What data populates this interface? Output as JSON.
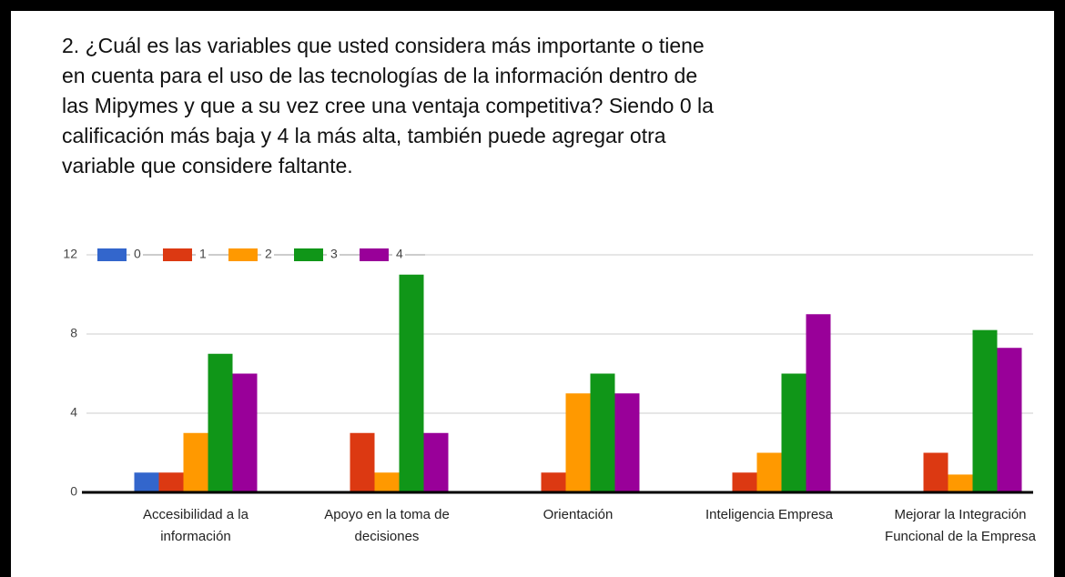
{
  "chart_data": {
    "type": "bar",
    "title": "2. ¿Cuál es las variables que usted considera más importante o tiene en cuenta para el uso de las tecnologías de la información dentro de las Mipymes y que a su vez cree una ventaja competitiva? Siendo 0 la calificación más baja y 4 la más alta, también puede agregar otra variable que considere faltante.",
    "categories": [
      "Accesibilidad a la información",
      "Apoyo en la toma de decisiones",
      "Orientación",
      "Inteligencia Empresa",
      "Mejorar la Integración Funcional de la Empresa"
    ],
    "series": [
      {
        "name": "0",
        "color": "#3366cc",
        "values": [
          1,
          0,
          0,
          0,
          0
        ]
      },
      {
        "name": "1",
        "color": "#dc3912",
        "values": [
          1,
          3,
          1,
          1,
          2
        ]
      },
      {
        "name": "2",
        "color": "#ff9900",
        "values": [
          3,
          1,
          5,
          2,
          0.9
        ]
      },
      {
        "name": "3",
        "color": "#109618",
        "values": [
          7,
          11,
          6,
          6,
          8.2
        ]
      },
      {
        "name": "4",
        "color": "#990099",
        "values": [
          6,
          3,
          5,
          9,
          7.3
        ]
      }
    ],
    "ylim": [
      0,
      12
    ],
    "yticks": [
      0,
      4,
      8,
      12
    ],
    "grid": true,
    "legend": "top"
  }
}
